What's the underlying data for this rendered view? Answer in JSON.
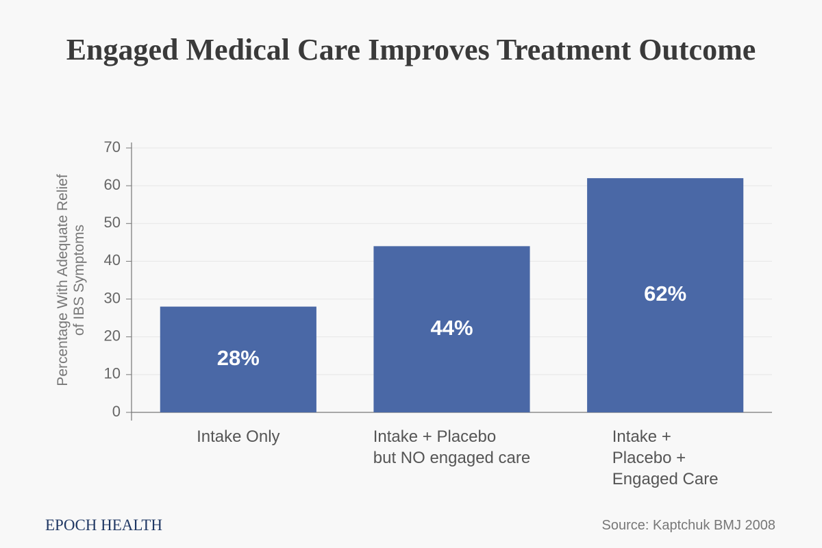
{
  "chart_data": {
    "type": "bar",
    "title": "Engaged Medical Care Improves Treatment Outcome",
    "y_label": "Percentage With Adequate Relief\nof IBS Symptoms",
    "categories": [
      "Intake Only",
      "Intake + Placebo\nbut NO engaged care",
      "Intake +\nPlacebo +\nEngaged Care"
    ],
    "values": [
      28,
      44,
      62
    ],
    "value_labels": [
      "28%",
      "44%",
      "62%"
    ],
    "color": "#4a68a6",
    "ylim": [
      0,
      70
    ],
    "yticks": [
      0,
      10,
      20,
      30,
      40,
      50,
      60,
      70
    ],
    "grid": true,
    "brand": "EPOCH HEALTH",
    "source": "Source: Kaptchuk BMJ 2008"
  }
}
